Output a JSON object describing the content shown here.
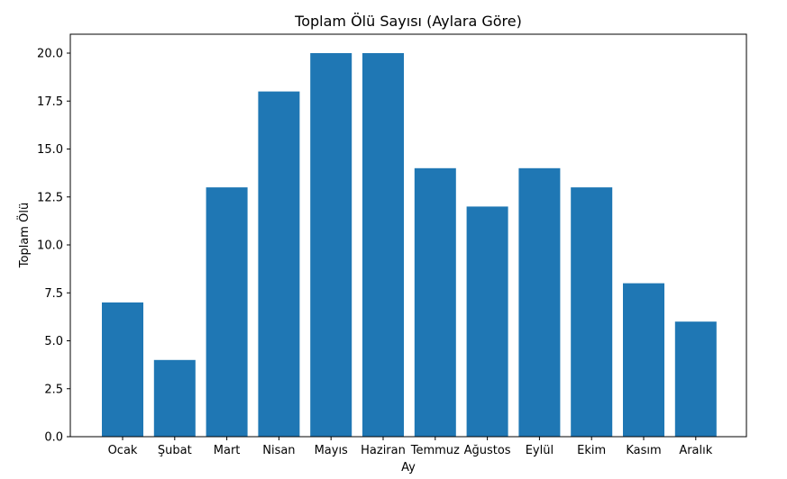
{
  "chart_data": {
    "type": "bar",
    "title": "Toplam Ölü Sayısı (Aylara Göre)",
    "xlabel": "Ay",
    "ylabel": "Toplam Ölü",
    "categories": [
      "Ocak",
      "Şubat",
      "Mart",
      "Nisan",
      "Mayıs",
      "Haziran",
      "Temmuz",
      "Ağustos",
      "Eylül",
      "Ekim",
      "Kasım",
      "Aralık"
    ],
    "values": [
      7,
      4,
      13,
      18,
      20,
      20,
      14,
      12,
      14,
      13,
      8,
      6
    ],
    "ylim": [
      0,
      21
    ],
    "yticks": [
      "0.0",
      "2.5",
      "5.0",
      "7.5",
      "10.0",
      "12.5",
      "15.0",
      "17.5",
      "20.0"
    ],
    "grid": false,
    "bar_color": "#1f77b4"
  }
}
